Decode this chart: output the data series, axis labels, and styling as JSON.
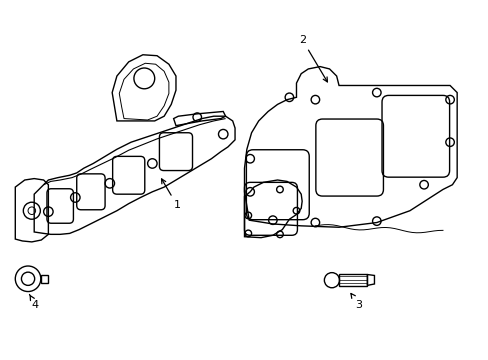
{
  "background_color": "#ffffff",
  "line_color": "#000000",
  "line_width": 1.0,
  "figsize": [
    4.89,
    3.6
  ],
  "dpi": 100,
  "xlim": [
    0,
    10
  ],
  "ylim": [
    0,
    7.5
  ]
}
